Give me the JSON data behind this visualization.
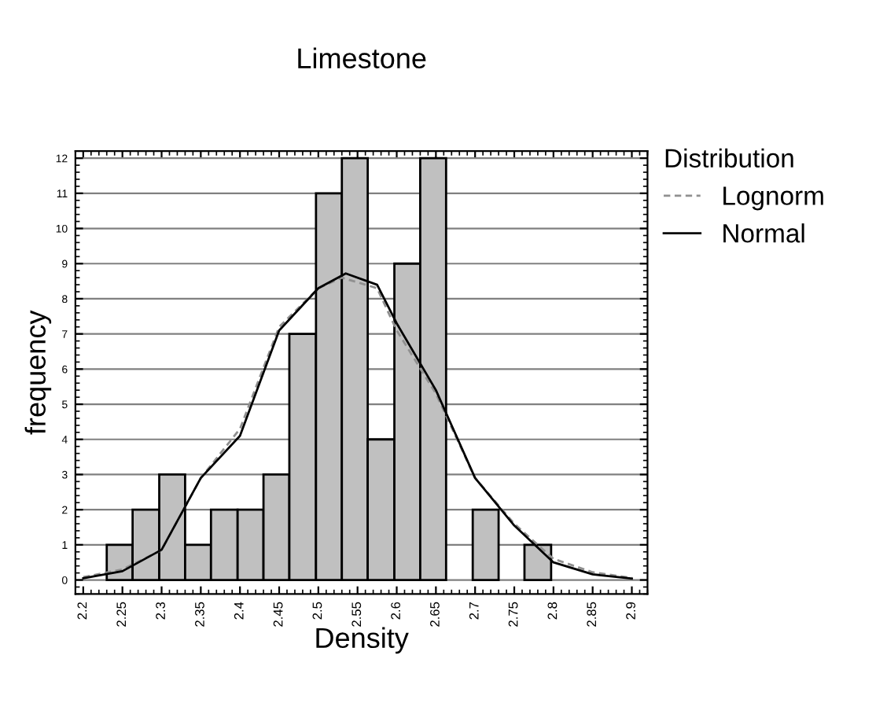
{
  "chart_data": {
    "type": "histogram",
    "title": "Limestone",
    "xlabel": "Density",
    "ylabel": "frequency",
    "legend_title": "Distribution",
    "color": "#c0c0c0",
    "bins": [
      2.23,
      2.263,
      2.297,
      2.33,
      2.363,
      2.397,
      2.43,
      2.463,
      2.497,
      2.53,
      2.563,
      2.597,
      2.63,
      2.663,
      2.697,
      2.73,
      2.763,
      2.797
    ],
    "values": [
      1,
      2,
      3,
      1,
      2,
      2,
      3,
      7,
      11,
      12,
      4,
      9,
      12,
      0,
      2,
      0,
      1
    ],
    "series": [
      {
        "type": "line",
        "name": "Lognorm",
        "color": "#909090",
        "line_style": "dashed",
        "x": [
          2.2,
          2.25,
          2.3,
          2.35,
          2.4,
          2.45,
          2.5,
          2.53,
          2.575,
          2.6,
          2.65,
          2.7,
          2.75,
          2.8,
          2.85,
          2.9
        ],
        "values": [
          0.08,
          0.3,
          0.85,
          2.9,
          4.3,
          7.2,
          8.3,
          8.6,
          8.3,
          7.1,
          5.3,
          2.9,
          1.6,
          0.6,
          0.22,
          0.06
        ]
      },
      {
        "type": "line",
        "name": "Normal",
        "color": "#000000",
        "line_style": "solid",
        "x": [
          2.2,
          2.25,
          2.3,
          2.35,
          2.4,
          2.45,
          2.5,
          2.535,
          2.575,
          2.6,
          2.65,
          2.7,
          2.75,
          2.8,
          2.85,
          2.9
        ],
        "values": [
          0.05,
          0.25,
          0.86,
          2.9,
          4.1,
          7.1,
          8.3,
          8.72,
          8.4,
          7.3,
          5.4,
          2.9,
          1.55,
          0.5,
          0.16,
          0.04
        ]
      }
    ],
    "xlim": [
      2.19,
      2.92
    ],
    "ylim": [
      -0.4,
      12.2
    ],
    "xticks": [
      2.2,
      2.25,
      2.3,
      2.35,
      2.4,
      2.45,
      2.5,
      2.55,
      2.6,
      2.65,
      2.7,
      2.75,
      2.8,
      2.85,
      2.9
    ],
    "yticks": [
      0,
      1,
      2,
      3,
      4,
      5,
      6,
      7,
      8,
      9,
      10,
      11,
      12
    ],
    "grid": "y",
    "legend": "top right",
    "marker": "none"
  }
}
